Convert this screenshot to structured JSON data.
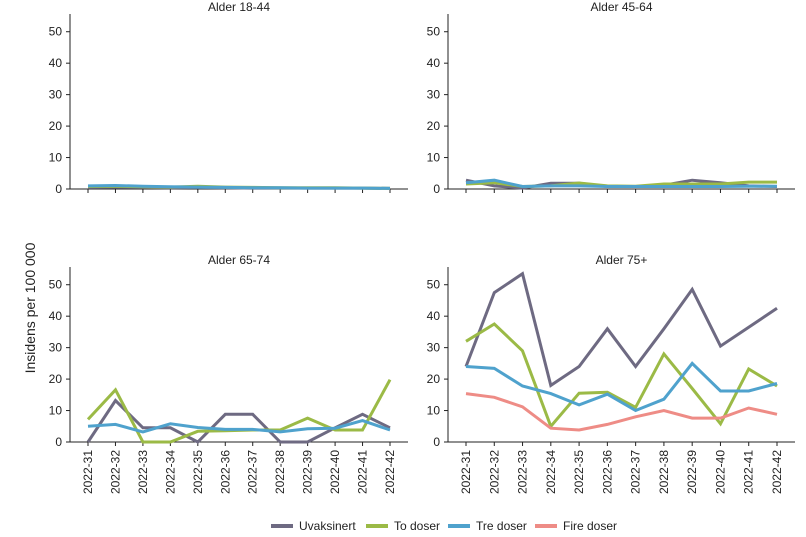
{
  "chart_data": {
    "type": "line",
    "ylabel": "Insidens per 100 000",
    "categories": [
      "2022-31",
      "2022-32",
      "2022-33",
      "2022-34",
      "2022-35",
      "2022-36",
      "2022-37",
      "2022-38",
      "2022-39",
      "2022-40",
      "2022-41",
      "2022-42"
    ],
    "ylim": [
      0,
      55
    ],
    "yticks": [
      0,
      10,
      20,
      30,
      40,
      50
    ],
    "series_names": [
      "Uvaksinert",
      "To doser",
      "Tre doser",
      "Fire doser"
    ],
    "series_colors": [
      "#6e6a82",
      "#9bba46",
      "#4fa2cd",
      "#ee8c86"
    ],
    "panels": [
      {
        "title": "Alder 18-44",
        "series": [
          {
            "name": "Uvaksinert",
            "values": [
              0.5,
              0.6,
              0.5,
              0.4,
              0.5,
              0.4,
              0.3,
              0.3,
              0.3,
              0.3,
              0.3,
              0.2
            ]
          },
          {
            "name": "To doser",
            "values": [
              0.8,
              0.9,
              0.7,
              0.6,
              0.9,
              0.6,
              0.5,
              0.4,
              0.4,
              0.4,
              0.3,
              0.2
            ]
          },
          {
            "name": "Tre doser",
            "values": [
              1.0,
              1.1,
              0.9,
              0.7,
              0.6,
              0.5,
              0.4,
              0.4,
              0.3,
              0.3,
              0.3,
              0.2
            ]
          }
        ]
      },
      {
        "title": "Alder 45-64",
        "series": [
          {
            "name": "Uvaksinert",
            "values": [
              2.8,
              1.0,
              0.3,
              1.8,
              1.8,
              0.8,
              0.8,
              1.2,
              2.8,
              2.0,
              1.0,
              0.8
            ]
          },
          {
            "name": "To doser",
            "values": [
              1.6,
              2.0,
              0.8,
              1.0,
              1.9,
              1.0,
              0.9,
              1.6,
              1.6,
              1.6,
              2.2,
              2.2
            ]
          },
          {
            "name": "Tre doser",
            "values": [
              2.0,
              2.8,
              0.8,
              1.0,
              1.0,
              0.8,
              0.8,
              0.8,
              0.8,
              0.8,
              0.9,
              0.9
            ]
          }
        ]
      },
      {
        "title": "Alder 65-74",
        "series": [
          {
            "name": "Uvaksinert",
            "values": [
              0,
              13.2,
              4.5,
              4.5,
              0,
              8.8,
              8.8,
              0,
              0,
              4.5,
              8.8,
              4.5
            ]
          },
          {
            "name": "To doser",
            "values": [
              7.2,
              16.6,
              0,
              0,
              3.4,
              3.6,
              3.8,
              3.8,
              7.6,
              3.8,
              3.8,
              19.8
            ]
          },
          {
            "name": "Tre doser",
            "values": [
              5.0,
              5.6,
              3.2,
              5.8,
              4.6,
              4.0,
              4.0,
              3.2,
              4.2,
              4.4,
              6.8,
              3.8
            ]
          }
        ]
      },
      {
        "title": "Alder 75+",
        "series": [
          {
            "name": "Uvaksinert",
            "values": [
              24.0,
              47.5,
              53.5,
              18.0,
              24.0,
              36.0,
              24.0,
              36.0,
              48.5,
              30.5,
              36.5,
              42.5
            ]
          },
          {
            "name": "To doser",
            "values": [
              32.0,
              37.5,
              29.0,
              5.0,
              15.5,
              15.8,
              11.0,
              28.0,
              17.0,
              5.8,
              23.2,
              17.8
            ]
          },
          {
            "name": "Tre doser",
            "values": [
              24.0,
              23.4,
              17.8,
              15.4,
              11.8,
              15.2,
              10.0,
              13.6,
              25.0,
              16.2,
              16.2,
              18.6
            ]
          },
          {
            "name": "Fire doser",
            "values": [
              15.4,
              14.2,
              11.2,
              4.4,
              3.8,
              5.6,
              8.0,
              10.0,
              7.6,
              7.6,
              10.8,
              8.8
            ]
          }
        ]
      }
    ]
  }
}
